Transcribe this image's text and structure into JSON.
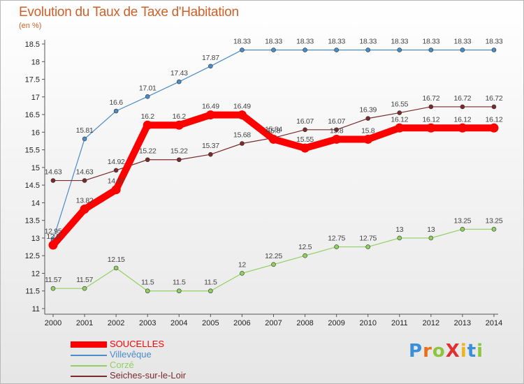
{
  "title": "Evolution du Taux de Taxe d'Habitation",
  "unit_label": "(en %)",
  "brand": {
    "letters": [
      {
        "ch": "P",
        "color": "#3a8fd6"
      },
      {
        "ch": "r",
        "color": "#e8701a"
      },
      {
        "ch": "o",
        "color": "#8cc63e"
      },
      {
        "ch": "X",
        "color": "#e03030"
      },
      {
        "ch": "i",
        "color": "#f2b21b"
      },
      {
        "ch": "t",
        "color": "#3a8fd6"
      },
      {
        "ch": "i",
        "color": "#8cc63e"
      }
    ]
  },
  "chart_data": {
    "type": "line",
    "x": [
      "2000",
      "2001",
      "2002",
      "2003",
      "2004",
      "2005",
      "2006",
      "2007",
      "2008",
      "2009",
      "2010",
      "2011",
      "2012",
      "2013",
      "2014"
    ],
    "ylim": [
      11,
      18.5
    ],
    "yticks": [
      "11",
      "11.5",
      "12",
      "12.5",
      "13",
      "13.5",
      "14",
      "14.5",
      "15",
      "15.5",
      "16",
      "16.5",
      "17",
      "17.5",
      "18",
      "18.5"
    ],
    "grid": false,
    "legend_position": "bottom-left",
    "series": [
      {
        "name": "SOUCELLES",
        "color": "#ff0000",
        "thick": true,
        "values": [
          12.8,
          13.82,
          14.37,
          16.2,
          16.2,
          16.49,
          16.49,
          15.8,
          15.55,
          15.8,
          15.8,
          16.12,
          16.12,
          16.12,
          16.12
        ],
        "labels": [
          "12.8",
          "13.82",
          "14.37",
          "16.2",
          "16.2",
          "16.49",
          "16.49",
          "15.8",
          "15.55",
          "15.8",
          "15.8",
          "16.12",
          "16.12",
          "16.12",
          "16.12"
        ]
      },
      {
        "name": "Villevêque",
        "color": "#4a8cc8",
        "thick": false,
        "values": [
          12.95,
          15.81,
          16.6,
          17.01,
          17.43,
          17.87,
          18.33,
          18.33,
          18.33,
          18.33,
          18.33,
          18.33,
          18.33,
          18.33,
          18.33
        ],
        "labels": [
          "12.95",
          "15.81",
          "16.6",
          "17.01",
          "17.43",
          "17.87",
          "18.33",
          "18.33",
          "18.33",
          "18.33",
          "18.33",
          "18.33",
          "18.33",
          "18.33",
          "18.33"
        ]
      },
      {
        "name": "Corzé",
        "color": "#90d060",
        "thick": false,
        "values": [
          11.57,
          11.57,
          12.15,
          11.5,
          11.5,
          11.5,
          12,
          12.25,
          12.5,
          12.75,
          12.75,
          13,
          13,
          13.25,
          13.25
        ],
        "labels": [
          "11.57",
          "11.57",
          "12.15",
          "11.5",
          "11.5",
          "11.5",
          "12",
          "12.25",
          "12.5",
          "12.75",
          "12.75",
          "13",
          "13",
          "13.25",
          "13.25"
        ]
      },
      {
        "name": "Seiches-sur-le-Loir",
        "color": "#7a2a2a",
        "thick": false,
        "values": [
          14.63,
          14.63,
          14.92,
          15.22,
          15.22,
          15.37,
          15.68,
          15.84,
          16.07,
          16.07,
          16.39,
          16.55,
          16.72,
          16.72,
          16.72
        ],
        "labels": [
          "14.63",
          "14.63",
          "14.92",
          "15.22",
          "15.22",
          "15.37",
          "15.68",
          "15.84",
          "16.07",
          "16.07",
          "16.39",
          "16.55",
          "16.72",
          "16.72",
          "16.72"
        ]
      }
    ]
  }
}
